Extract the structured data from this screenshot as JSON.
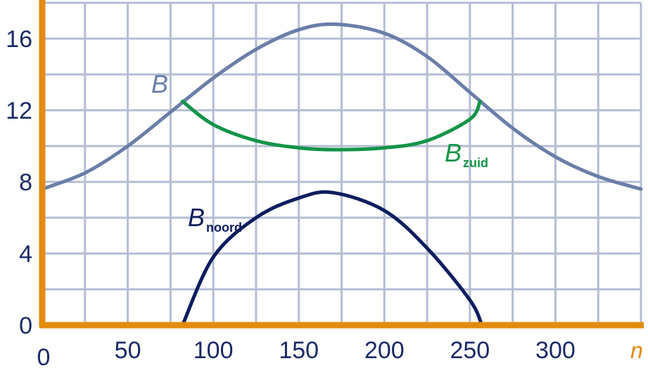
{
  "chart_data": {
    "type": "line",
    "title": "",
    "xlabel": "n",
    "ylabel": "",
    "xlim": [
      0,
      350
    ],
    "ylim": [
      0,
      18
    ],
    "x_ticks": [
      "0",
      "50",
      "100",
      "150",
      "200",
      "250",
      "300"
    ],
    "y_ticks": [
      "0",
      "4",
      "8",
      "12",
      "16"
    ],
    "grid": true,
    "colors": {
      "grid": "#b4bdd4",
      "axes": "#e38b0f",
      "tick_text": "#1b2a66",
      "xname": "#e08a10"
    },
    "series": [
      {
        "name": "B",
        "label_main": "B",
        "label_sub": "",
        "color": "#6a7ea8",
        "x": [
          0,
          25,
          50,
          75,
          100,
          125,
          150,
          172,
          200,
          225,
          250,
          275,
          300,
          325,
          350
        ],
        "y": [
          7.6,
          8.5,
          10.0,
          11.9,
          13.8,
          15.4,
          16.5,
          16.8,
          16.3,
          15.0,
          13.0,
          11.0,
          9.4,
          8.3,
          7.6
        ]
      },
      {
        "name": "Bzuid",
        "label_main": "B",
        "label_sub": "zuid",
        "color": "#149447",
        "x": [
          82,
          100,
          125,
          150,
          172,
          200,
          225,
          250,
          256
        ],
        "y": [
          12.5,
          11.2,
          10.3,
          9.9,
          9.8,
          9.9,
          10.3,
          11.5,
          12.5
        ]
      },
      {
        "name": "Bnoord",
        "label_main": "B",
        "label_sub": "noord",
        "color": "#0d1d5e",
        "x": [
          82,
          100,
          125,
          150,
          170,
          200,
          225,
          250,
          257
        ],
        "y": [
          0,
          3.8,
          6.0,
          7.1,
          7.4,
          6.4,
          4.3,
          1.4,
          0
        ]
      }
    ]
  }
}
